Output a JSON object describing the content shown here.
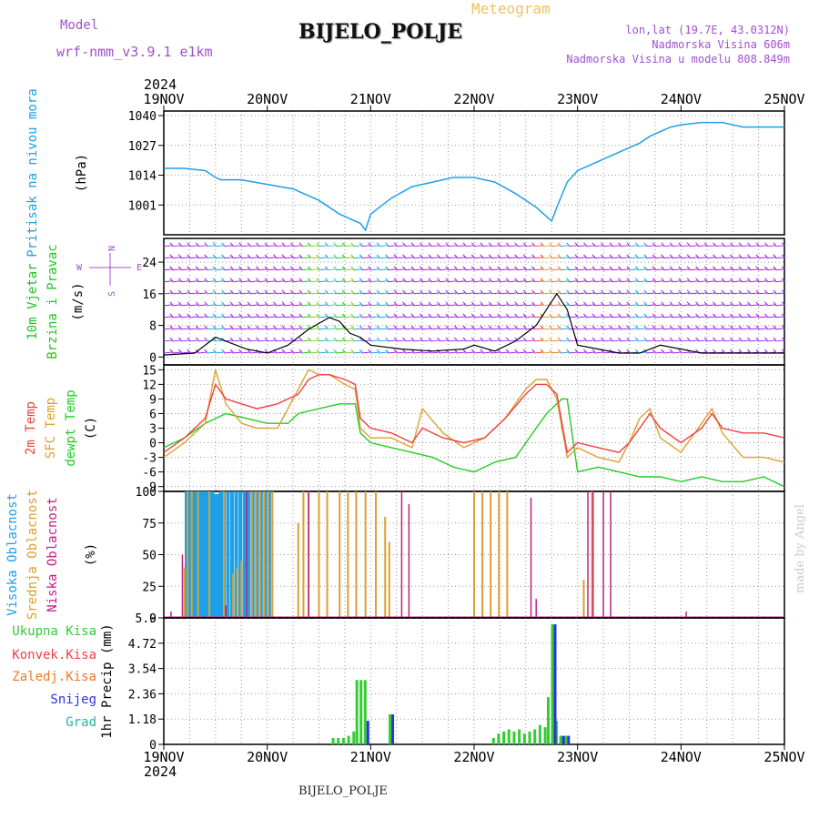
{
  "header": {
    "title": "BIJELO_POLJE",
    "subtitle": "Meteogram",
    "model_label": "Model",
    "model_name": "wrf-nmm_v3.9.1 e1km",
    "lonlat": "lon,lat (19.7E, 43.0312N)",
    "elevation": "Nadmorska Visina 606m",
    "model_elevation": "Nadmorska Visina u modelu 808.849m",
    "footer": "BIJELO_POLJE",
    "credit": "made by Angel"
  },
  "colors": {
    "pressure": "#1ea0e6",
    "wind_label": "#22c422",
    "wind_speed": "#000000",
    "wind_barb": "#a020f0",
    "temp_2m": "#f04040",
    "temp_sfc": "#dca030",
    "dewpoint": "#22cc22",
    "cloud_high": "#1ea0e6",
    "cloud_mid": "#dca030",
    "cloud_low": "#c02080",
    "precip_total": "#33cc33",
    "precip_conv": "#f04040",
    "precip_frozen": "#f07828",
    "snow": "#3030e0",
    "hail": "#22b4a0",
    "header_purple": "#a050d0",
    "header_orange": "#f0c060"
  },
  "chart_data": [
    {
      "type": "line",
      "panel": "pressure",
      "year": "2024",
      "x_labels": [
        "19NOV",
        "20NOV",
        "21NOV",
        "22NOV",
        "23NOV",
        "24NOV",
        "25NOV"
      ],
      "ylabel_1": "Pritisak na nivou mora",
      "ylabel_units": "(hPa)",
      "ylim": [
        988,
        1042
      ],
      "yticks": [
        1001,
        1014,
        1027,
        1040
      ],
      "series": [
        {
          "x": [
            0.0,
            0.2,
            0.4,
            0.5,
            0.55,
            0.75,
            1.0,
            1.25,
            1.5,
            1.7,
            1.8,
            1.9,
            1.95,
            2.0,
            2.2,
            2.4,
            2.6,
            2.8,
            3.0,
            3.2,
            3.4,
            3.6,
            3.7,
            3.75,
            3.8,
            3.9,
            4.0,
            4.2,
            4.4,
            4.6,
            4.7,
            4.9,
            5.0,
            5.2,
            5.4,
            5.6,
            5.8,
            6.0
          ],
          "y": [
            1017,
            1017,
            1016,
            1013,
            1012,
            1012,
            1010,
            1008,
            1003,
            997,
            995,
            993,
            990,
            997,
            1004,
            1009,
            1011,
            1013,
            1013,
            1011,
            1006,
            1000,
            996,
            994,
            1000,
            1011,
            1016,
            1020,
            1024,
            1028,
            1031,
            1035,
            1036,
            1037,
            1037,
            1035,
            1035,
            1035
          ]
        }
      ]
    },
    {
      "type": "line",
      "panel": "wind",
      "ylabel_1": "10m Vjetar",
      "ylabel_2": "Brzina i Pravac",
      "ylabel_units": "(m/s)",
      "compass_n": "N",
      "compass_s": "S",
      "compass_w": "W",
      "compass_e": "E",
      "ylim": [
        -2,
        30
      ],
      "yticks": [
        0,
        8,
        16,
        24
      ],
      "barb_levels": [
        1,
        4,
        7,
        10,
        13,
        16,
        19,
        22,
        25,
        28
      ],
      "series": [
        {
          "name": "speed",
          "x": [
            0.0,
            0.3,
            0.5,
            0.8,
            1.0,
            1.2,
            1.4,
            1.6,
            1.7,
            1.8,
            1.9,
            2.0,
            2.3,
            2.6,
            2.9,
            3.0,
            3.2,
            3.4,
            3.6,
            3.8,
            3.9,
            4.0,
            4.2,
            4.4,
            4.6,
            4.8,
            5.0,
            5.2,
            5.4,
            5.6,
            5.8,
            6.0
          ],
          "y": [
            0.5,
            1.0,
            5.0,
            2.0,
            1.0,
            3.0,
            7.0,
            10.0,
            9.0,
            6.0,
            5.0,
            3.0,
            2.0,
            1.5,
            2.0,
            3.0,
            1.5,
            4.0,
            8.0,
            16.0,
            12.0,
            3.0,
            2.0,
            1.0,
            1.0,
            3.0,
            2.0,
            1.0,
            1.0,
            1.0,
            1.0,
            1.0
          ]
        }
      ]
    },
    {
      "type": "line",
      "panel": "temperature",
      "ylabel_1": "2m Temp",
      "ylabel_2": "SFC Temp",
      "ylabel_3": "dewpt Temp",
      "ylabel_units": "(C)",
      "ylim": [
        -10,
        16
      ],
      "yticks": [
        -9,
        -6,
        -3,
        0,
        3,
        6,
        9,
        12,
        15
      ],
      "series": [
        {
          "name": "2m Temp",
          "x": [
            0.0,
            0.2,
            0.4,
            0.5,
            0.6,
            0.75,
            0.9,
            1.1,
            1.3,
            1.4,
            1.5,
            1.6,
            1.75,
            1.85,
            1.9,
            2.0,
            2.2,
            2.4,
            2.5,
            2.7,
            2.9,
            3.1,
            3.3,
            3.5,
            3.6,
            3.7,
            3.8,
            3.9,
            4.0,
            4.2,
            4.4,
            4.5,
            4.6,
            4.7,
            4.8,
            5.0,
            5.2,
            5.3,
            5.4,
            5.6,
            5.8,
            6.0
          ],
          "y": [
            -2,
            1,
            5,
            12,
            9,
            8,
            7,
            8,
            10,
            13,
            14,
            14,
            13,
            12,
            5,
            3,
            2,
            0,
            3,
            1,
            0,
            1,
            5,
            10,
            12,
            12,
            10,
            -2,
            0,
            -1,
            -2,
            0,
            3,
            6,
            3,
            0,
            3,
            6,
            3,
            2,
            2,
            1
          ]
        },
        {
          "name": "SFC Temp",
          "x": [
            0.0,
            0.2,
            0.4,
            0.5,
            0.6,
            0.75,
            0.9,
            1.1,
            1.3,
            1.4,
            1.5,
            1.6,
            1.75,
            1.85,
            1.9,
            2.0,
            2.2,
            2.4,
            2.5,
            2.7,
            2.9,
            3.1,
            3.3,
            3.5,
            3.6,
            3.7,
            3.8,
            3.9,
            4.0,
            4.2,
            4.4,
            4.5,
            4.6,
            4.7,
            4.8,
            5.0,
            5.2,
            5.3,
            5.4,
            5.6,
            5.8,
            6.0
          ],
          "y": [
            -3,
            0,
            4,
            15,
            8,
            4,
            3,
            3,
            11,
            15,
            14,
            14,
            12,
            11,
            3,
            1,
            1,
            -1,
            7,
            2,
            -1,
            1,
            5,
            11,
            13,
            13,
            9,
            -3,
            -1,
            -3,
            -4,
            0,
            5,
            7,
            1,
            -2,
            4,
            7,
            2,
            -3,
            -3,
            -4
          ]
        },
        {
          "name": "dewpt Temp",
          "x": [
            0.0,
            0.2,
            0.4,
            0.6,
            0.8,
            1.0,
            1.2,
            1.3,
            1.5,
            1.7,
            1.8,
            1.85,
            1.9,
            2.0,
            2.2,
            2.4,
            2.6,
            2.8,
            3.0,
            3.2,
            3.4,
            3.6,
            3.7,
            3.8,
            3.85,
            3.9,
            4.0,
            4.2,
            4.4,
            4.6,
            4.8,
            5.0,
            5.2,
            5.4,
            5.6,
            5.8,
            6.0
          ],
          "y": [
            -1,
            1,
            4,
            6,
            5,
            4,
            4,
            6,
            7,
            8,
            8,
            8,
            2,
            0,
            -1,
            -2,
            -3,
            -5,
            -6,
            -4,
            -3,
            3,
            6,
            8,
            9,
            9,
            -6,
            -5,
            -6,
            -7,
            -7,
            -8,
            -7,
            -8,
            -8,
            -7,
            -9
          ]
        }
      ]
    },
    {
      "type": "bar",
      "panel": "clouds",
      "ylabel_1": "Visoka Oblacnost",
      "ylabel_2": "Srednja Oblacnost",
      "ylabel_3": "Niska Oblacnost",
      "ylabel_units": "(%)",
      "ylim": [
        0,
        100
      ],
      "yticks": [
        0,
        25,
        50,
        75,
        100
      ],
      "bars": [
        {
          "layer": "high",
          "x": [
            0.22,
            0.24,
            0.26,
            0.28,
            0.31,
            0.34,
            0.37,
            0.39,
            0.41,
            0.44,
            0.47,
            0.5,
            0.53,
            0.55,
            0.58,
            0.62,
            0.66,
            0.7,
            0.74,
            0.78,
            0.82,
            0.86,
            0.9,
            0.94,
            0.98,
            1.02
          ],
          "y": [
            100,
            100,
            100,
            100,
            100,
            100,
            100,
            100,
            100,
            100,
            100,
            98,
            98,
            100,
            100,
            100,
            100,
            100,
            100,
            100,
            100,
            100,
            100,
            100,
            100,
            100
          ]
        },
        {
          "layer": "mid",
          "x": [
            0.2,
            0.23,
            0.27,
            0.33,
            0.44,
            0.58,
            0.67,
            0.71,
            0.75,
            0.85,
            0.89,
            0.93,
            0.97,
            1.01,
            1.05,
            1.3,
            1.35,
            1.4,
            1.5,
            1.58,
            1.7,
            1.78,
            1.86,
            1.95,
            2.05,
            2.14,
            2.18,
            3.0,
            3.08,
            3.16,
            3.24,
            3.32,
            4.06,
            4.14
          ],
          "y": [
            40,
            100,
            100,
            100,
            100,
            100,
            35,
            40,
            45,
            100,
            100,
            100,
            100,
            100,
            100,
            75,
            100,
            100,
            100,
            100,
            100,
            100,
            100,
            100,
            100,
            80,
            60,
            100,
            100,
            100,
            100,
            100,
            30,
            100
          ]
        },
        {
          "layer": "low",
          "x": [
            0.07,
            0.18,
            0.6,
            0.8,
            1.4,
            2.3,
            2.37,
            3.55,
            3.6,
            4.1,
            4.15,
            4.25,
            4.32,
            5.05
          ],
          "y": [
            5,
            50,
            10,
            100,
            100,
            100,
            90,
            95,
            15,
            100,
            100,
            100,
            100,
            5
          ]
        }
      ]
    },
    {
      "type": "bar",
      "panel": "precipitation",
      "ylabel_1": "Ukupna Kisa",
      "ylabel_2": "Konvek.Kisa",
      "ylabel_3": "Zaledj.Kisa",
      "ylabel_4": "Snijeg",
      "ylabel_5": "Grad",
      "ylabel_units": "1hr Precip (mm)",
      "ylim": [
        0,
        5.9
      ],
      "yticks": [
        0,
        1.18,
        2.36,
        3.54,
        4.72,
        5.9
      ],
      "bars": [
        {
          "layer": "total",
          "x": [
            1.65,
            1.7,
            1.75,
            1.8,
            1.85,
            1.88,
            1.92,
            1.96,
            2.2,
            3.2,
            3.25,
            3.3,
            3.35,
            3.4,
            3.45,
            3.5,
            3.55,
            3.6,
            3.65,
            3.7,
            3.73,
            3.77,
            3.81,
            3.85,
            3.9
          ],
          "y": [
            0.3,
            0.3,
            0.3,
            0.4,
            0.6,
            3.0,
            3.0,
            3.0,
            1.4,
            0.3,
            0.5,
            0.6,
            0.7,
            0.6,
            0.7,
            0.5,
            0.6,
            0.7,
            0.9,
            0.8,
            2.2,
            5.6,
            1.1,
            0.4,
            0.4
          ]
        },
        {
          "layer": "snow",
          "x": [
            1.96,
            2.2,
            3.77,
            3.85,
            3.9
          ],
          "y": [
            1.1,
            1.4,
            5.6,
            0.4,
            0.4
          ]
        }
      ]
    }
  ]
}
